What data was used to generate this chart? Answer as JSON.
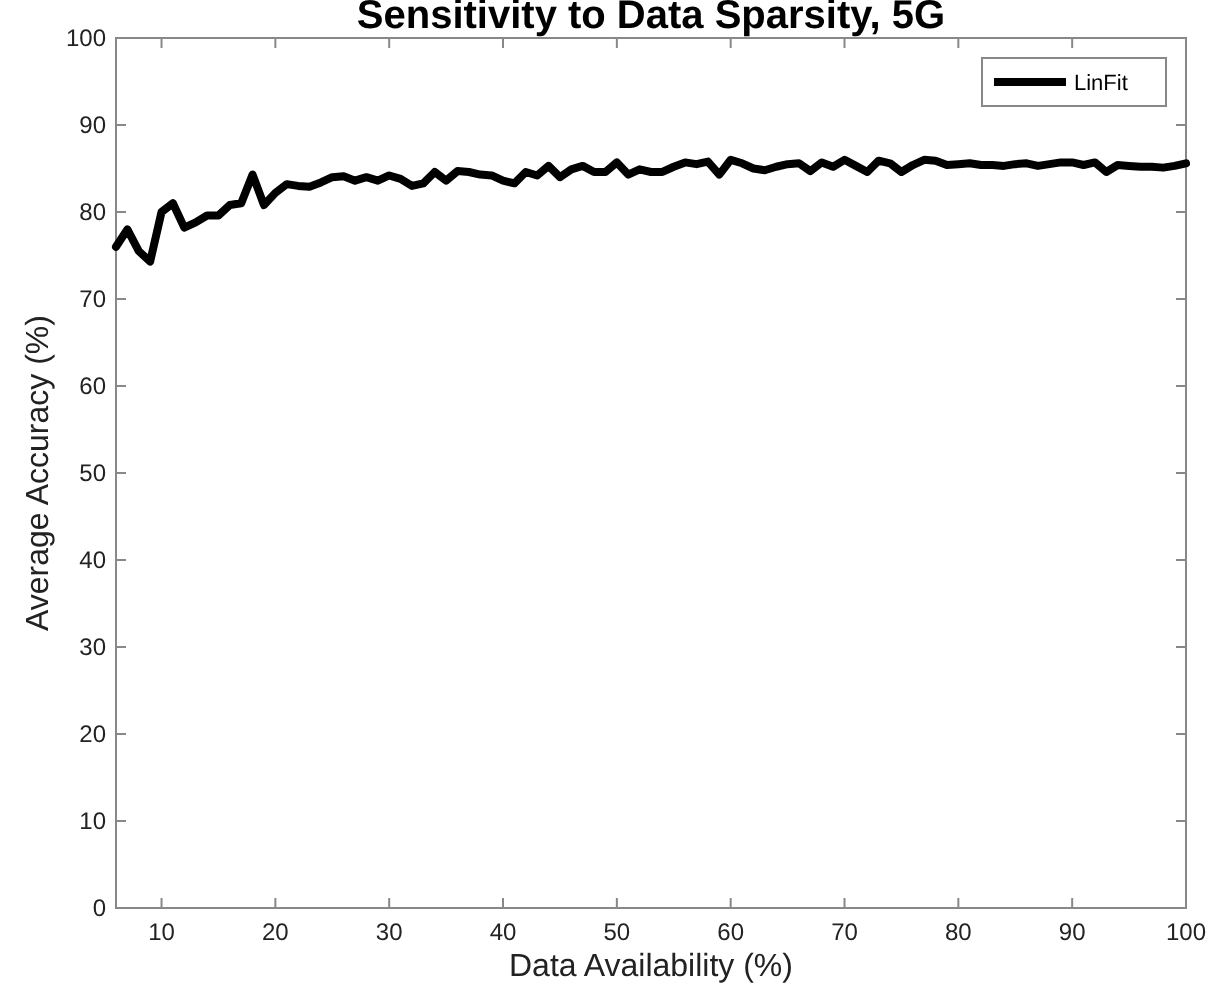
{
  "chart_data": {
    "type": "line",
    "title": "Sensitivity to Data Sparsity, 5G",
    "xlabel": "Data Availability (%)",
    "ylabel": "Average Accuracy (%)",
    "x": [
      6,
      7,
      8,
      9,
      10,
      11,
      12,
      13,
      14,
      15,
      16,
      17,
      18,
      19,
      20,
      21,
      22,
      23,
      24,
      25,
      26,
      27,
      28,
      29,
      30,
      31,
      32,
      33,
      34,
      35,
      36,
      37,
      38,
      39,
      40,
      41,
      42,
      43,
      44,
      45,
      46,
      47,
      48,
      49,
      50,
      51,
      52,
      53,
      54,
      55,
      56,
      57,
      58,
      59,
      60,
      61,
      62,
      63,
      64,
      65,
      66,
      67,
      68,
      69,
      70,
      71,
      72,
      73,
      74,
      75,
      76,
      77,
      78,
      79,
      80,
      81,
      82,
      83,
      84,
      85,
      86,
      87,
      88,
      89,
      90,
      91,
      92,
      93,
      94,
      95,
      96,
      97,
      98,
      99,
      100
    ],
    "series": [
      {
        "name": "LinFit",
        "color": "#000000",
        "values": [
          76,
          78,
          75.5,
          74.3,
          80,
          81,
          78.2,
          78.8,
          79.6,
          79.6,
          80.8,
          81,
          84.3,
          80.8,
          82.2,
          83.2,
          83,
          82.9,
          83.4,
          84,
          84.1,
          83.6,
          84,
          83.6,
          84.2,
          83.8,
          83,
          83.3,
          84.6,
          83.6,
          84.7,
          84.6,
          84.3,
          84.2,
          83.6,
          83.3,
          84.6,
          84.2,
          85.3,
          84,
          84.9,
          85.3,
          84.6,
          84.6,
          85.7,
          84.3,
          84.9,
          84.6,
          84.6,
          85.2,
          85.7,
          85.5,
          85.8,
          84.3,
          86,
          85.6,
          85,
          84.8,
          85.2,
          85.5,
          85.6,
          84.7,
          85.7,
          85.2,
          86,
          85.3,
          84.6,
          85.9,
          85.6,
          84.6,
          85.4,
          86,
          85.9,
          85.4,
          85.5,
          85.6,
          85.4,
          85.4,
          85.3,
          85.5,
          85.6,
          85.3,
          85.5,
          85.7,
          85.7,
          85.4,
          85.7,
          84.6,
          85.4,
          85.3,
          85.2,
          85.2,
          85.1,
          85.3,
          85.6
        ]
      }
    ],
    "xlim": [
      6,
      100
    ],
    "xticks": [
      10,
      20,
      30,
      40,
      50,
      60,
      70,
      80,
      90,
      100
    ],
    "ylim": [
      0,
      100
    ],
    "yticks": [
      0,
      10,
      20,
      30,
      40,
      50,
      60,
      70,
      80,
      90,
      100
    ],
    "grid": false,
    "legend": "top right",
    "marker": "none",
    "line_style": "solid"
  }
}
